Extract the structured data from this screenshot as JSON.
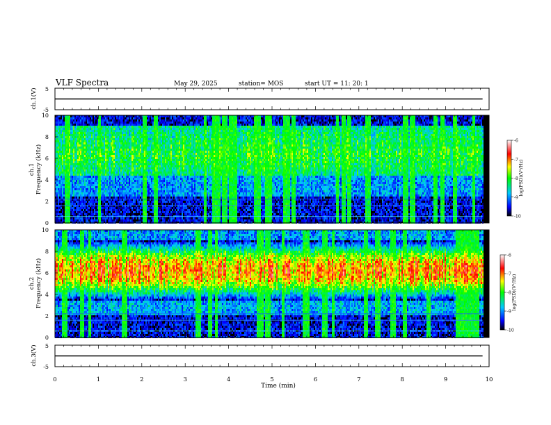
{
  "header": {
    "title": "VLF Spectra",
    "date": "May 29, 2025",
    "station": "station= MOS",
    "start": "start  UT =   11: 20: 1"
  },
  "chart_data": [
    {
      "type": "line",
      "panel": "ch1-voltage",
      "ylabel": "ch.1(V)",
      "ylim": [
        -5,
        5
      ],
      "yticks": [
        "5",
        "-5"
      ],
      "series": [
        {
          "x": [
            0,
            9.85
          ],
          "y": [
            0,
            0
          ]
        }
      ]
    },
    {
      "type": "heatmap",
      "panel": "ch1-spectrogram",
      "ylabel": "ch.1",
      "ylabel2": "Frequency (kHz)",
      "ylim": [
        0,
        10
      ],
      "yticks": [
        "0",
        "2",
        "4",
        "6",
        "8",
        "10"
      ],
      "xlim": [
        0,
        10
      ],
      "data_xmax": 9.85,
      "colorbar": {
        "label": "log(PSD)(V²/Hz)",
        "range": [
          -10,
          -6
        ],
        "ticks": [
          "-6",
          "-7",
          "-8",
          "-9",
          "-10"
        ],
        "colors": [
          "#000000",
          "#0000ff",
          "#00c8ff",
          "#00ff00",
          "#ffff00",
          "#ff0000",
          "#ffffff"
        ]
      }
    },
    {
      "type": "heatmap",
      "panel": "ch2-spectrogram",
      "ylabel": "ch.2",
      "ylabel2": "Frequency (kHz)",
      "ylim": [
        0,
        10
      ],
      "yticks": [
        "0",
        "2",
        "4",
        "6",
        "8",
        "10"
      ],
      "xlim": [
        0,
        10
      ],
      "data_xmax": 9.85,
      "colorbar": {
        "label": "log(PSD)(V²/Hz)",
        "range": [
          -10,
          -6
        ],
        "ticks": [
          "-6",
          "-7",
          "-8",
          "-9",
          "-10"
        ],
        "colors": [
          "#000000",
          "#0000ff",
          "#00c8ff",
          "#00ff00",
          "#ffff00",
          "#ff0000",
          "#ffffff"
        ]
      }
    },
    {
      "type": "line",
      "panel": "ch3-voltage",
      "ylabel": "ch.3(V)",
      "ylim": [
        -5,
        5
      ],
      "yticks": [
        "5",
        "-5"
      ],
      "series": [
        {
          "x": [
            0,
            9.85
          ],
          "y": [
            0,
            0
          ]
        }
      ]
    }
  ],
  "xaxis": {
    "label": "Time (min)",
    "ticks": [
      "0",
      "1",
      "2",
      "3",
      "4",
      "5",
      "6",
      "7",
      "8",
      "9",
      "10"
    ]
  }
}
